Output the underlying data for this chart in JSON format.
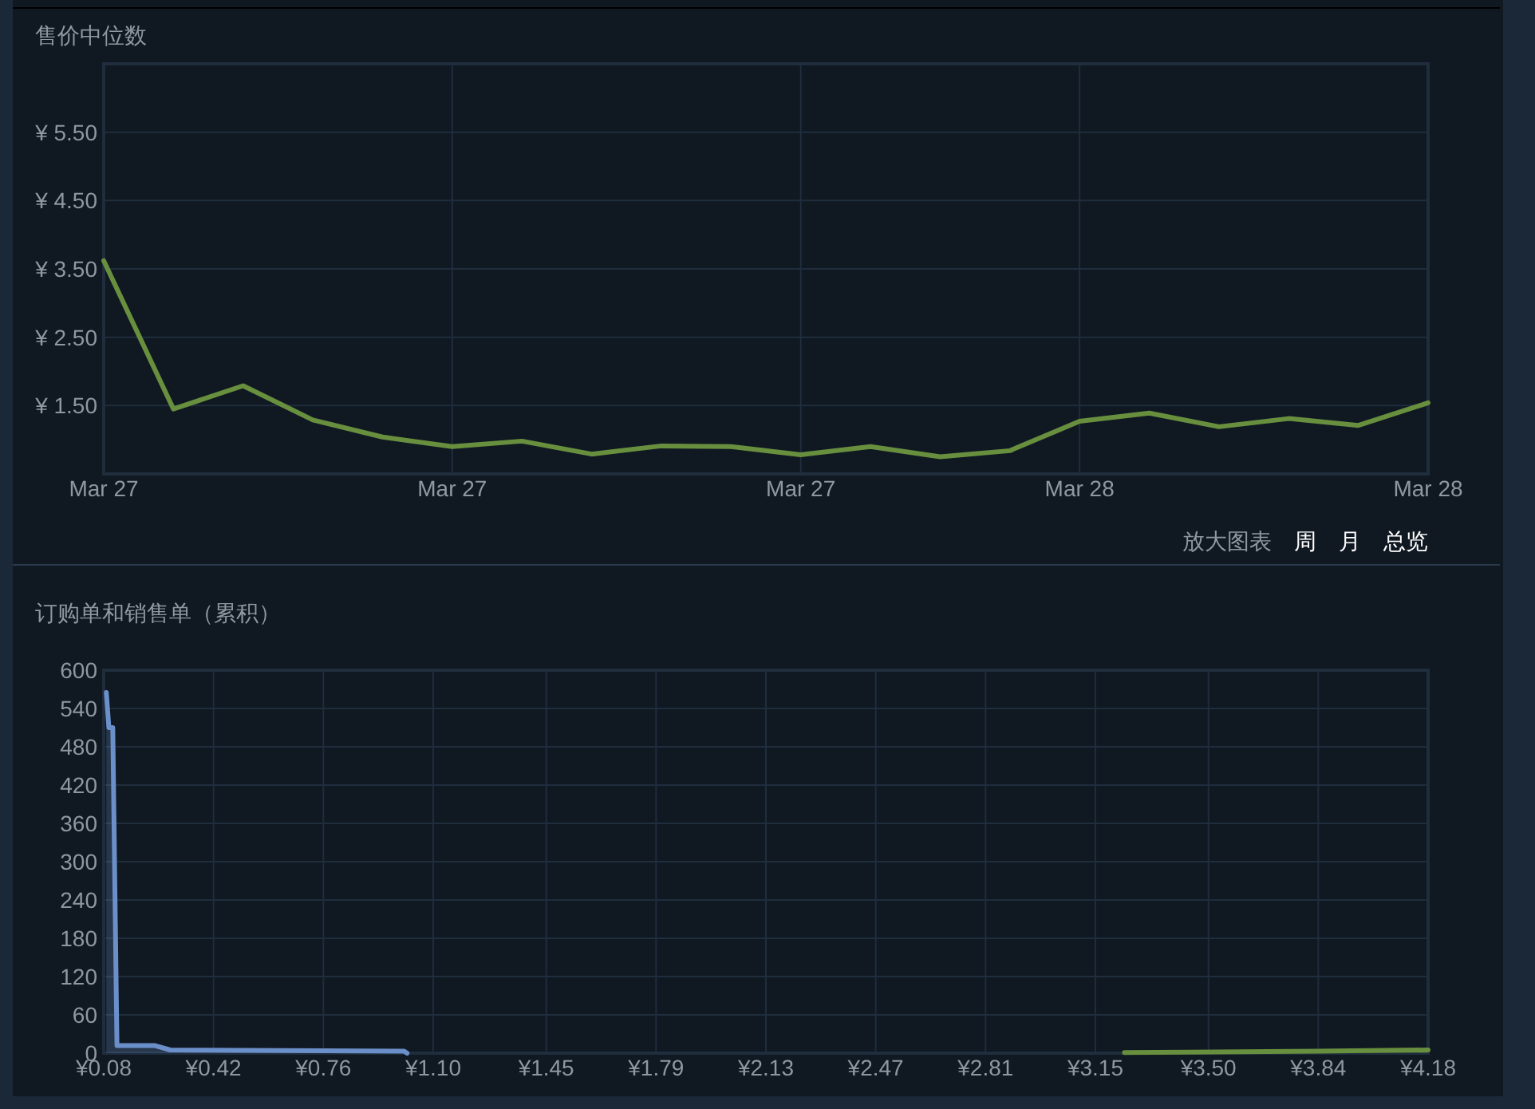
{
  "chart_data": [
    {
      "type": "line",
      "title": "售价中位数",
      "categories": [
        "Mar 27",
        null,
        null,
        null,
        null,
        "Mar 27",
        null,
        null,
        null,
        null,
        "Mar 27",
        null,
        null,
        null,
        "Mar 28",
        null,
        null,
        null,
        null,
        "Mar 28"
      ],
      "ylim": [
        0.5,
        6.5
      ],
      "yticks": [
        {
          "value": 1.5,
          "label": "¥ 1.50"
        },
        {
          "value": 2.5,
          "label": "¥ 2.50"
        },
        {
          "value": 3.5,
          "label": "¥ 3.50"
        },
        {
          "value": 4.5,
          "label": "¥ 4.50"
        },
        {
          "value": 5.5,
          "label": "¥ 5.50"
        }
      ],
      "grid": true,
      "series": [
        {
          "color": "#688f3e",
          "values": [
            3.62,
            1.45,
            1.79,
            1.29,
            1.04,
            0.9,
            0.98,
            0.79,
            0.91,
            0.9,
            0.78,
            0.9,
            0.75,
            0.84,
            1.27,
            1.39,
            1.19,
            1.31,
            1.21,
            1.54
          ]
        }
      ],
      "annotations": [
        "放大图表",
        "周",
        "月",
        "总览"
      ]
    },
    {
      "type": "area",
      "title": "订购单和销售单（累积）",
      "xlim": [
        0.08,
        4.18
      ],
      "xticks": [
        {
          "value": 0.08,
          "label": "¥0.08"
        },
        {
          "value": 0.42,
          "label": "¥0.42"
        },
        {
          "value": 0.76,
          "label": "¥0.76"
        },
        {
          "value": 1.1,
          "label": "¥1.10"
        },
        {
          "value": 1.45,
          "label": "¥1.45"
        },
        {
          "value": 1.79,
          "label": "¥1.79"
        },
        {
          "value": 2.13,
          "label": "¥2.13"
        },
        {
          "value": 2.47,
          "label": "¥2.47"
        },
        {
          "value": 2.81,
          "label": "¥2.81"
        },
        {
          "value": 3.15,
          "label": "¥3.15"
        },
        {
          "value": 3.5,
          "label": "¥3.50"
        },
        {
          "value": 3.84,
          "label": "¥3.84"
        },
        {
          "value": 4.18,
          "label": "¥4.18"
        }
      ],
      "ylim": [
        0,
        600
      ],
      "yticks": [
        0,
        60,
        120,
        180,
        240,
        300,
        360,
        420,
        480,
        540,
        600
      ],
      "grid": true,
      "series": [
        {
          "color": "#6b8fc9",
          "x": [
            0.088,
            0.096,
            0.108,
            0.121,
            0.237,
            0.286,
            1.01,
            1.019
          ],
          "values": [
            565,
            510,
            510,
            12,
            12,
            5,
            3,
            0
          ]
        },
        {
          "color": "#688f3e",
          "x": [
            3.24,
            3.84,
            4.18
          ],
          "values": [
            1,
            3,
            5
          ]
        }
      ]
    }
  ]
}
